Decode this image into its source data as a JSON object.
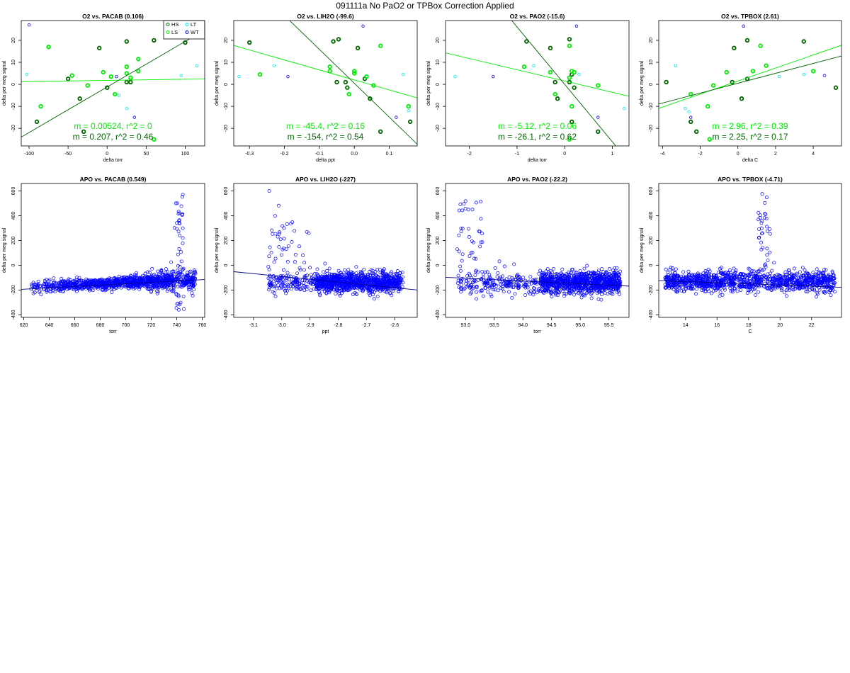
{
  "page_title": "091111a   No PaO2 or TPBox Correction Applied",
  "colors": {
    "HS": "#006400",
    "LS": "#00ee00",
    "LT": "#00eeee",
    "WT": "#0000ee",
    "fit_green": "#00ee00",
    "fit_dark": "#006400",
    "apo_points": "#0000ff",
    "apo_fit": "#00008b"
  },
  "chart_data": [
    {
      "type": "scatter",
      "title": "O2 vs. PACAB (0.106)",
      "xlabel": "delta torr",
      "ylabel": "delta per meg signal",
      "xlim": [
        -110,
        125
      ],
      "ylim": [
        -28,
        29
      ],
      "xticks": [
        -100,
        -50,
        0,
        50,
        100
      ],
      "yticks": [
        -20,
        -10,
        0,
        10,
        20
      ],
      "legend": {
        "placement": "top-right",
        "entries": [
          "HS",
          "LS",
          "LT",
          "WT"
        ]
      },
      "series": [
        {
          "name": "HS",
          "points": [
            [
              -90,
              -17
            ],
            [
              -50,
              2.5
            ],
            [
              -35,
              -6.5
            ],
            [
              -30,
              -21.5
            ],
            [
              -10,
              16.5
            ],
            [
              0,
              -1.5
            ],
            [
              25,
              19.5
            ],
            [
              25,
              1
            ],
            [
              30,
              1
            ],
            [
              60,
              20
            ],
            [
              100,
              19
            ]
          ]
        },
        {
          "name": "LS",
          "points": [
            [
              -75,
              17
            ],
            [
              -85,
              -10
            ],
            [
              -45,
              4
            ],
            [
              -25,
              -0.5
            ],
            [
              -5,
              5.5
            ],
            [
              5,
              3.5
            ],
            [
              10,
              -4.5
            ],
            [
              25,
              5
            ],
            [
              25,
              8
            ],
            [
              30,
              3
            ],
            [
              40,
              6
            ],
            [
              40,
              11.5
            ],
            [
              60,
              -25
            ]
          ]
        },
        {
          "name": "LT",
          "points": [
            [
              -103,
              4.5
            ],
            [
              15,
              -5
            ],
            [
              25,
              -11
            ],
            [
              95,
              4
            ],
            [
              115,
              8.5
            ]
          ]
        },
        {
          "name": "WT",
          "points": [
            [
              -100,
              27
            ],
            [
              12,
              3.5
            ],
            [
              35,
              -15
            ]
          ]
        }
      ],
      "fits": [
        {
          "label": "m = 0.00524, r^2 = 0",
          "slope": 0.00524,
          "intercept": 1.8,
          "color": "fit_green"
        },
        {
          "label": "m = 0.207, r^2 = 0.46",
          "slope": 0.207,
          "intercept": -1.2,
          "color": "fit_dark"
        }
      ]
    },
    {
      "type": "scatter",
      "title": "O2 vs. LIH2O (-99.6)",
      "xlabel": "delta ppt",
      "ylabel": "delta per meg signal",
      "xlim": [
        -0.345,
        0.18
      ],
      "ylim": [
        -28,
        29
      ],
      "xticks": [
        -0.3,
        -0.2,
        -0.1,
        0.0,
        0.1
      ],
      "yticks": [
        -20,
        -10,
        0,
        10,
        20
      ],
      "series": [
        {
          "name": "HS",
          "points": [
            [
              -0.06,
              19.5
            ],
            [
              -0.045,
              20.5
            ],
            [
              -0.05,
              1
            ],
            [
              -0.025,
              1
            ],
            [
              -0.02,
              -1.5
            ],
            [
              0.01,
              16.5
            ],
            [
              0.03,
              2.5
            ],
            [
              0.045,
              -6.5
            ],
            [
              0.075,
              -21.5
            ],
            [
              0.16,
              -17
            ],
            [
              -0.3,
              19
            ]
          ]
        },
        {
          "name": "LS",
          "points": [
            [
              -0.07,
              8
            ],
            [
              -0.07,
              6
            ],
            [
              -0.015,
              -4.5
            ],
            [
              0.0,
              5
            ],
            [
              0.0,
              6
            ],
            [
              0.035,
              3.5
            ],
            [
              0.055,
              -0.5
            ],
            [
              0.075,
              17.5
            ],
            [
              0.155,
              -10
            ],
            [
              -0.27,
              4.5
            ]
          ]
        },
        {
          "name": "LT",
          "points": [
            [
              -0.33,
              3.5
            ],
            [
              -0.23,
              8.5
            ],
            [
              0.14,
              4.5
            ],
            [
              0.155,
              -12
            ]
          ]
        },
        {
          "name": "WT",
          "points": [
            [
              0.025,
              26.5
            ],
            [
              -0.19,
              3.5
            ],
            [
              0.12,
              -15
            ]
          ]
        }
      ],
      "fits": [
        {
          "label": "m = -45.4, r^2 = 0.16",
          "slope": -45.4,
          "intercept": 2.0,
          "color": "fit_green"
        },
        {
          "label": "m = -154, r^2 = 0.54",
          "slope": -154,
          "intercept": 0.5,
          "color": "fit_dark"
        }
      ]
    },
    {
      "type": "scatter",
      "title": "O2 vs. PAO2 (-15.6)",
      "xlabel": "delta torr",
      "ylabel": "delta per meg signal",
      "xlim": [
        -2.5,
        1.35
      ],
      "ylim": [
        -28,
        29
      ],
      "xticks": [
        -2,
        -1,
        0,
        1
      ],
      "yticks": [
        -20,
        -10,
        0,
        10,
        20
      ],
      "series": [
        {
          "name": "HS",
          "points": [
            [
              -0.8,
              19.5
            ],
            [
              -0.3,
              16.5
            ],
            [
              -0.2,
              1
            ],
            [
              0.1,
              20.5
            ],
            [
              0.1,
              1
            ],
            [
              0.15,
              4.5
            ],
            [
              0.2,
              -1.5
            ],
            [
              -0.15,
              -6.5
            ],
            [
              0.15,
              -17
            ],
            [
              0.7,
              -21.5
            ]
          ]
        },
        {
          "name": "LS",
          "points": [
            [
              -0.85,
              8
            ],
            [
              -0.3,
              5.5
            ],
            [
              -0.2,
              -4.5
            ],
            [
              0.1,
              17.5
            ],
            [
              0.1,
              3
            ],
            [
              0.15,
              6
            ],
            [
              0.2,
              5.5
            ],
            [
              0.15,
              -10
            ],
            [
              0.7,
              -0.5
            ],
            [
              0.1,
              -25
            ]
          ]
        },
        {
          "name": "LT",
          "points": [
            [
              -2.3,
              3.5
            ],
            [
              -0.65,
              8.5
            ],
            [
              0.3,
              4.5
            ],
            [
              1.25,
              -11
            ]
          ]
        },
        {
          "name": "WT",
          "points": [
            [
              0.25,
              26.5
            ],
            [
              -1.5,
              3.5
            ],
            [
              0.7,
              -15
            ]
          ]
        }
      ],
      "fits": [
        {
          "label": "m = -5.12, r^2 = 0.06",
          "slope": -5.12,
          "intercept": 1.5,
          "color": "fit_green"
        },
        {
          "label": "m = -26.1, r^2 = 0.62",
          "slope": -26.1,
          "intercept": 0.0,
          "color": "fit_dark"
        }
      ]
    },
    {
      "type": "scatter",
      "title": "O2 vs. TPBOX (2.61)",
      "xlabel": "delta C",
      "ylabel": "delta per meg signal",
      "xlim": [
        -4.2,
        5.5
      ],
      "ylim": [
        -28,
        29
      ],
      "xticks": [
        -4,
        -2,
        0,
        2,
        4
      ],
      "yticks": [
        -20,
        -10,
        0,
        10,
        20
      ],
      "series": [
        {
          "name": "HS",
          "points": [
            [
              -3.8,
              1
            ],
            [
              -2.5,
              -17
            ],
            [
              -2.2,
              -21.5
            ],
            [
              -0.3,
              1
            ],
            [
              -0.2,
              16.5
            ],
            [
              0.2,
              -6.5
            ],
            [
              0.5,
              2.5
            ],
            [
              0.5,
              20
            ],
            [
              3.5,
              19.5
            ],
            [
              5.2,
              -1.5
            ]
          ]
        },
        {
          "name": "LS",
          "points": [
            [
              -2.5,
              -4.5
            ],
            [
              -1.6,
              -10
            ],
            [
              -1.5,
              -25
            ],
            [
              -1.3,
              -0.5
            ],
            [
              -0.6,
              5.5
            ],
            [
              0.8,
              6
            ],
            [
              1.2,
              17.5
            ],
            [
              1.5,
              8.5
            ],
            [
              4.0,
              6
            ]
          ]
        },
        {
          "name": "LT",
          "points": [
            [
              -3.3,
              8.5
            ],
            [
              -2.8,
              -11
            ],
            [
              -2.6,
              -12.5
            ],
            [
              2.2,
              3.5
            ],
            [
              3.5,
              4.5
            ]
          ]
        },
        {
          "name": "WT",
          "points": [
            [
              0.3,
              26.5
            ],
            [
              4.6,
              4
            ],
            [
              -2.5,
              -15
            ]
          ]
        }
      ],
      "fits": [
        {
          "label": "m = 2.96, r^2 = 0.39",
          "slope": 2.96,
          "intercept": 1.5,
          "color": "fit_green"
        },
        {
          "label": "m = 2.25, r^2 = 0.17",
          "slope": 2.25,
          "intercept": 0.5,
          "color": "fit_dark"
        }
      ]
    },
    {
      "type": "scatter",
      "title": "APO vs. PACAB (0.549)",
      "xlabel": "torr",
      "ylabel": "delta per meg signal",
      "xlim": [
        618,
        762
      ],
      "ylim": [
        -420,
        660
      ],
      "xticks": [
        620,
        640,
        660,
        680,
        700,
        720,
        740,
        760
      ],
      "yticks": [
        -400,
        -200,
        0,
        200,
        400,
        600
      ],
      "fit": {
        "slope": 0.549,
        "intercept": -533,
        "color": "apo_fit"
      }
    },
    {
      "type": "scatter",
      "title": "APO vs. LIH2O (-227)",
      "xlabel": "ppt",
      "ylabel": "delta per meg signal",
      "xlim": [
        -3.17,
        -2.52
      ],
      "ylim": [
        -420,
        660
      ],
      "xticks": [
        -3.1,
        -3.0,
        -2.9,
        -2.8,
        -2.7,
        -2.6
      ],
      "yticks": [
        -400,
        -200,
        0,
        200,
        400,
        600
      ],
      "fit": {
        "slope": -227,
        "intercept": -771,
        "color": "apo_fit"
      }
    },
    {
      "type": "scatter",
      "title": "APO vs. PAO2 (-22.2)",
      "xlabel": "torr",
      "ylabel": "delta per meg signal",
      "xlim": [
        92.65,
        95.85
      ],
      "ylim": [
        -420,
        660
      ],
      "xticks": [
        93.0,
        93.5,
        94.0,
        94.5,
        95.0,
        95.5
      ],
      "yticks": [
        -400,
        -200,
        0,
        200,
        400,
        600
      ],
      "fit": {
        "slope": -22.2,
        "intercept": 1960,
        "color": "apo_fit"
      }
    },
    {
      "type": "scatter",
      "title": "APO vs. TPBOX (-4.71)",
      "xlabel": "C",
      "ylabel": "delta per meg signal",
      "xlim": [
        12.3,
        23.9
      ],
      "ylim": [
        -420,
        660
      ],
      "xticks": [
        14,
        16,
        18,
        20,
        22
      ],
      "yticks": [
        -400,
        -200,
        0,
        200,
        400,
        600
      ],
      "fit": {
        "slope": -4.71,
        "intercept": -65,
        "color": "apo_fit"
      }
    }
  ]
}
